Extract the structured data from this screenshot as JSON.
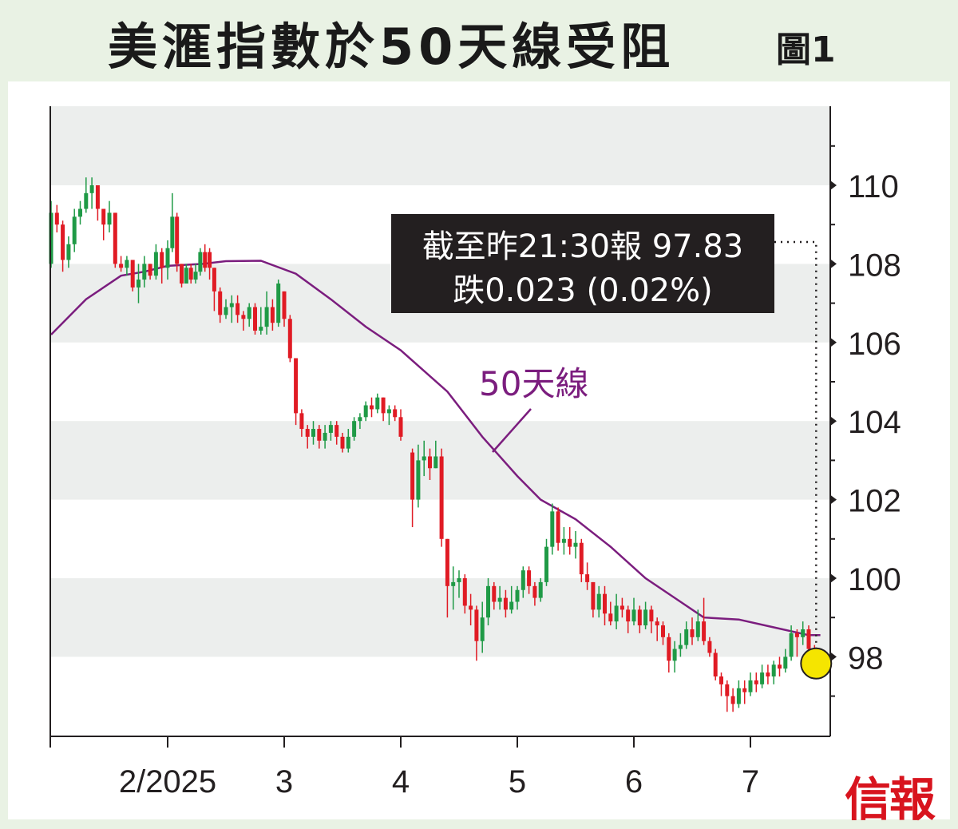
{
  "header": {
    "title": "美滙指數於50天線受阻",
    "figure_no": "圖1"
  },
  "brand": {
    "logo_text": "信報"
  },
  "colors": {
    "up": "#1f9a46",
    "down": "#e01b24",
    "ma": "#7b1d7e",
    "band": "#eceeed",
    "callout_bg": "#231f20",
    "marker": "#f5e500"
  },
  "chart_data": {
    "type": "candlestick",
    "title": "美滙指數於50天線受阻",
    "y_ticks": [
      "110",
      "108",
      "106",
      "104",
      "102",
      "100",
      "98"
    ],
    "y_tick_values": [
      110,
      108,
      106,
      104,
      102,
      100,
      98
    ],
    "ylim": [
      96.0,
      112.0
    ],
    "x_ticks": [
      "2/2025",
      "3",
      "4",
      "5",
      "6",
      "7"
    ],
    "x_tick_days": [
      0,
      10,
      20,
      30,
      40,
      50
    ],
    "xlim": [
      -10,
      57
    ],
    "grid": "alternating horizontal bands every 2 points",
    "ma_label": "50天線",
    "ma_series": [
      [
        -10,
        106.2
      ],
      [
        -7,
        107.1
      ],
      [
        -4,
        107.7
      ],
      [
        -2,
        107.8
      ],
      [
        0,
        107.95
      ],
      [
        3,
        108.0
      ],
      [
        5,
        108.07
      ],
      [
        8,
        108.08
      ],
      [
        11,
        107.75
      ],
      [
        14,
        107.1
      ],
      [
        17,
        106.4
      ],
      [
        20,
        105.8
      ],
      [
        24,
        104.75
      ],
      [
        27,
        103.6
      ],
      [
        30,
        102.6
      ],
      [
        32,
        102.0
      ],
      [
        35,
        101.5
      ],
      [
        38,
        100.8
      ],
      [
        41,
        100.0
      ],
      [
        44,
        99.4
      ],
      [
        46,
        99.0
      ],
      [
        49,
        98.95
      ],
      [
        52,
        98.75
      ],
      [
        55,
        98.55
      ],
      [
        56,
        98.55
      ]
    ],
    "candles": [
      [
        -10,
        108.0,
        109.3,
        109.6,
        107.9
      ],
      [
        -9.5,
        109.3,
        109.0,
        109.5,
        108.8
      ],
      [
        -9,
        109.0,
        108.1,
        109.1,
        107.8
      ],
      [
        -8.5,
        108.1,
        108.5,
        108.7,
        107.9
      ],
      [
        -8,
        108.5,
        109.2,
        109.4,
        108.3
      ],
      [
        -7.5,
        109.2,
        109.4,
        109.6,
        109.0
      ],
      [
        -7,
        109.4,
        109.8,
        110.2,
        109.3
      ],
      [
        -6.5,
        109.8,
        110.0,
        110.2,
        109.4
      ],
      [
        -6,
        110.0,
        109.4,
        110.0,
        109.1
      ],
      [
        -5.5,
        109.4,
        109.0,
        109.3,
        108.6
      ],
      [
        -5,
        109.0,
        109.3,
        109.6,
        108.8
      ],
      [
        -4.5,
        109.3,
        108.0,
        109.3,
        107.9
      ],
      [
        -4,
        108.0,
        107.9,
        108.2,
        107.8
      ],
      [
        -3.5,
        107.9,
        108.1,
        108.2,
        107.7
      ],
      [
        -3,
        108.1,
        107.4,
        108.1,
        107.3
      ],
      [
        -2.5,
        107.4,
        107.6,
        108.0,
        107.0
      ],
      [
        -2,
        107.6,
        108.0,
        108.2,
        107.4
      ],
      [
        -1.5,
        108.0,
        107.7,
        108.0,
        107.6
      ],
      [
        -1,
        107.7,
        108.3,
        108.5,
        107.6
      ],
      [
        -0.5,
        108.3,
        107.9,
        108.4,
        107.5
      ],
      [
        0,
        107.9,
        108.4,
        108.6,
        107.6
      ],
      [
        0.4,
        108.4,
        109.2,
        109.8,
        108.3
      ],
      [
        0.8,
        109.2,
        108.0,
        109.3,
        107.8
      ],
      [
        1.2,
        108.0,
        107.5,
        108.0,
        107.4
      ],
      [
        1.6,
        107.5,
        107.9,
        108.0,
        107.5
      ],
      [
        2,
        107.9,
        107.6,
        108.0,
        107.5
      ],
      [
        2.4,
        107.6,
        107.8,
        108.0,
        107.5
      ],
      [
        2.8,
        107.8,
        108.3,
        108.4,
        107.7
      ],
      [
        3.2,
        108.3,
        107.9,
        108.5,
        107.8
      ],
      [
        3.6,
        108.3,
        107.9,
        108.4,
        107.6
      ],
      [
        4,
        107.9,
        107.3,
        107.9,
        106.8
      ],
      [
        4.5,
        107.3,
        106.7,
        107.4,
        106.5
      ],
      [
        5,
        106.7,
        106.9,
        107.1,
        106.6
      ],
      [
        5.5,
        106.9,
        107.0,
        107.2,
        106.5
      ],
      [
        6,
        107.0,
        106.7,
        107.2,
        106.5
      ],
      [
        6.5,
        106.7,
        106.6,
        106.8,
        106.3
      ],
      [
        7,
        106.6,
        106.9,
        107.0,
        106.4
      ],
      [
        7.5,
        106.9,
        106.3,
        107.0,
        106.2
      ],
      [
        8,
        106.3,
        106.4,
        106.9,
        106.2
      ],
      [
        8.5,
        106.4,
        106.9,
        107.3,
        106.2
      ],
      [
        9,
        106.9,
        106.5,
        107.1,
        106.3
      ],
      [
        9.5,
        106.5,
        107.5,
        107.6,
        106.4
      ],
      [
        10,
        107.3,
        106.6,
        107.3,
        106.4
      ],
      [
        10.5,
        106.6,
        105.6,
        106.7,
        105.5
      ],
      [
        11,
        105.6,
        104.2,
        105.6,
        103.9
      ],
      [
        11.5,
        104.2,
        103.8,
        104.3,
        103.6
      ],
      [
        12,
        103.8,
        103.6,
        103.9,
        103.3
      ],
      [
        12.5,
        103.6,
        103.8,
        104.0,
        103.4
      ],
      [
        13,
        103.8,
        103.5,
        103.9,
        103.3
      ],
      [
        13.5,
        103.5,
        103.7,
        103.9,
        103.3
      ],
      [
        14,
        103.7,
        103.9,
        104.0,
        103.5
      ],
      [
        14.5,
        103.9,
        103.6,
        104.0,
        103.4
      ],
      [
        15,
        103.6,
        103.3,
        103.7,
        103.2
      ],
      [
        15.5,
        103.3,
        103.6,
        103.8,
        103.2
      ],
      [
        16,
        103.6,
        104.0,
        104.1,
        103.5
      ],
      [
        16.5,
        104.0,
        104.1,
        104.2,
        103.8
      ],
      [
        17,
        104.1,
        104.4,
        104.5,
        104.0
      ],
      [
        17.5,
        104.4,
        104.3,
        104.6,
        104.1
      ],
      [
        18,
        104.3,
        104.6,
        104.7,
        104.2
      ],
      [
        18.5,
        104.6,
        104.2,
        104.6,
        104.0
      ],
      [
        19,
        104.2,
        104.3,
        104.4,
        103.9
      ],
      [
        19.5,
        104.3,
        104.1,
        104.4,
        104.0
      ],
      [
        20,
        104.1,
        103.6,
        104.3,
        103.5
      ],
      [
        21,
        103.2,
        102.0,
        103.3,
        101.3
      ],
      [
        21.5,
        102.0,
        103.0,
        103.4,
        101.8
      ],
      [
        22,
        103.0,
        103.1,
        103.5,
        102.6
      ],
      [
        22.5,
        103.1,
        102.8,
        103.3,
        102.5
      ],
      [
        23,
        102.8,
        103.1,
        103.5,
        102.8
      ],
      [
        23.5,
        103.1,
        101.0,
        103.3,
        100.8
      ],
      [
        24,
        101.0,
        99.8,
        101.0,
        99.0
      ],
      [
        24.5,
        99.8,
        99.9,
        100.3,
        99.2
      ],
      [
        25,
        99.9,
        100.0,
        100.2,
        99.5
      ],
      [
        25.5,
        100.0,
        99.3,
        100.1,
        99.1
      ],
      [
        26,
        99.3,
        99.2,
        99.6,
        98.8
      ],
      [
        26.5,
        99.2,
        98.4,
        99.3,
        97.9
      ],
      [
        27,
        98.4,
        99.0,
        99.4,
        98.1
      ],
      [
        27.5,
        99.0,
        99.8,
        100.0,
        98.8
      ],
      [
        28,
        99.8,
        99.4,
        99.9,
        99.2
      ],
      [
        28.5,
        99.4,
        99.5,
        99.8,
        99.2
      ],
      [
        29,
        99.5,
        99.2,
        99.7,
        99.0
      ],
      [
        29.5,
        99.2,
        99.4,
        99.8,
        99.1
      ],
      [
        30,
        99.4,
        99.7,
        99.8,
        99.2
      ],
      [
        30.5,
        99.7,
        100.2,
        100.3,
        99.5
      ],
      [
        31,
        100.2,
        99.8,
        100.3,
        99.6
      ],
      [
        31.5,
        99.8,
        99.5,
        99.9,
        99.3
      ],
      [
        32,
        99.5,
        99.9,
        100.0,
        99.4
      ],
      [
        32.5,
        99.9,
        100.8,
        101.0,
        99.8
      ],
      [
        33,
        100.8,
        101.7,
        101.9,
        100.6
      ],
      [
        33.5,
        101.7,
        100.9,
        101.8,
        100.7
      ],
      [
        34,
        100.9,
        101.0,
        101.3,
        100.6
      ],
      [
        34.5,
        101.0,
        100.8,
        101.3,
        100.6
      ],
      [
        35,
        100.8,
        100.9,
        101.2,
        100.5
      ],
      [
        35.5,
        100.9,
        100.1,
        101.0,
        99.9
      ],
      [
        36,
        100.1,
        99.9,
        100.4,
        99.7
      ],
      [
        36.5,
        99.9,
        99.2,
        99.9,
        99.0
      ],
      [
        37,
        99.2,
        99.6,
        99.8,
        99.0
      ],
      [
        37.5,
        99.6,
        99.1,
        99.8,
        98.8
      ],
      [
        38,
        99.1,
        98.9,
        99.4,
        98.8
      ],
      [
        38.5,
        98.9,
        99.3,
        99.6,
        98.7
      ],
      [
        39,
        99.3,
        99.2,
        99.5,
        99.0
      ],
      [
        39.5,
        99.2,
        98.9,
        99.3,
        98.6
      ],
      [
        40,
        98.9,
        99.2,
        99.5,
        98.8
      ],
      [
        40.5,
        99.2,
        98.8,
        99.3,
        98.6
      ],
      [
        41,
        98.8,
        99.2,
        99.4,
        98.7
      ],
      [
        41.5,
        99.2,
        98.9,
        99.3,
        98.6
      ],
      [
        42,
        98.9,
        98.8,
        99.0,
        98.4
      ],
      [
        42.5,
        98.8,
        98.5,
        98.9,
        98.3
      ],
      [
        43,
        98.5,
        97.9,
        98.6,
        97.6
      ],
      [
        43.5,
        97.9,
        98.2,
        98.4,
        97.6
      ],
      [
        44,
        98.2,
        98.3,
        98.6,
        98.0
      ],
      [
        44.5,
        98.3,
        98.7,
        98.9,
        98.2
      ],
      [
        45,
        98.7,
        98.5,
        99.0,
        98.3
      ],
      [
        45.5,
        98.5,
        98.9,
        99.2,
        98.4
      ],
      [
        46,
        98.9,
        98.4,
        99.5,
        98.3
      ],
      [
        46.5,
        98.4,
        98.1,
        98.5,
        98.0
      ],
      [
        47,
        98.1,
        97.5,
        98.2,
        97.4
      ],
      [
        47.5,
        97.5,
        97.3,
        97.6,
        97.0
      ],
      [
        48,
        97.3,
        97.0,
        97.4,
        96.6
      ],
      [
        48.5,
        97.0,
        96.8,
        97.2,
        96.6
      ],
      [
        49,
        96.8,
        97.2,
        97.4,
        96.7
      ],
      [
        49.5,
        97.2,
        97.1,
        97.4,
        96.8
      ],
      [
        50,
        97.1,
        97.4,
        97.6,
        97.0
      ],
      [
        50.5,
        97.4,
        97.3,
        97.6,
        97.1
      ],
      [
        51,
        97.3,
        97.6,
        97.8,
        97.2
      ],
      [
        51.5,
        97.6,
        97.5,
        97.8,
        97.3
      ],
      [
        52,
        97.5,
        97.8,
        97.9,
        97.3
      ],
      [
        52.5,
        97.8,
        97.7,
        98.0,
        97.5
      ],
      [
        53,
        97.7,
        98.0,
        98.2,
        97.6
      ],
      [
        53.5,
        98.0,
        98.6,
        98.8,
        97.9
      ],
      [
        54,
        98.6,
        98.5,
        98.7,
        98.0
      ],
      [
        54.5,
        98.5,
        98.7,
        98.9,
        98.3
      ],
      [
        55,
        98.7,
        98.2,
        98.8,
        98.0
      ],
      [
        55.5,
        98.2,
        97.83,
        98.3,
        97.7
      ]
    ],
    "callout": {
      "line1": "截至昨21:30報 97.83",
      "line2": "跌0.023 (0.02%)",
      "last_close": 97.83
    }
  }
}
